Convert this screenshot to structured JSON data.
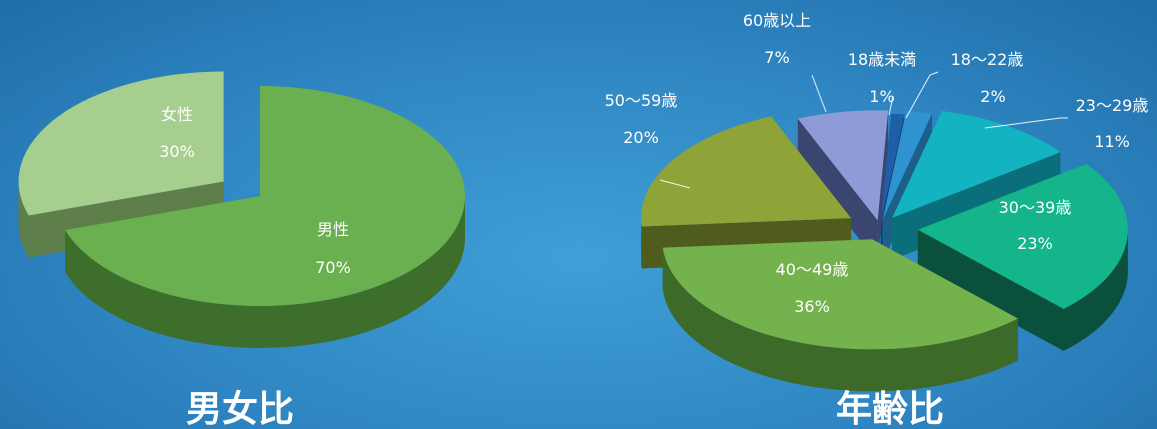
{
  "chart_data": [
    {
      "type": "pie",
      "title": "男女比",
      "slices": [
        {
          "name": "男性",
          "percent_label": "70%",
          "value": 70,
          "color": "#6aaf50",
          "side_color": "#3d6e2c",
          "exploded": false
        },
        {
          "name": "女性",
          "percent_label": "30%",
          "value": 30,
          "color": "#a6cf8f",
          "side_color": "#5e7f4a",
          "exploded": true
        }
      ]
    },
    {
      "type": "pie",
      "title": "年齢比",
      "slices": [
        {
          "name": "18歳未満",
          "percent_label": "1%",
          "value": 1,
          "color": "#1f5fa8",
          "side_color": "#133d6d"
        },
        {
          "name": "18～22歳",
          "percent_label": "2%",
          "value": 2,
          "color": "#2e93d0",
          "side_color": "#1d5f88"
        },
        {
          "name": "23～29歳",
          "percent_label": "11%",
          "value": 11,
          "color": "#13b3c2",
          "side_color": "#0a6f7a"
        },
        {
          "name": "30～39歳",
          "percent_label": "23%",
          "value": 23,
          "color": "#14b58a",
          "side_color": "#0b4f3d"
        },
        {
          "name": "40～49歳",
          "percent_label": "36%",
          "value": 36,
          "color": "#74b24e",
          "side_color": "#3d6a28"
        },
        {
          "name": "50～59歳",
          "percent_label": "20%",
          "value": 20,
          "color": "#8ea338",
          "side_color": "#4f5c1d"
        },
        {
          "name": "60歳以上",
          "percent_label": "7%",
          "value": 7,
          "color": "#8e9bd6",
          "side_color": "#3a4670"
        }
      ]
    }
  ]
}
